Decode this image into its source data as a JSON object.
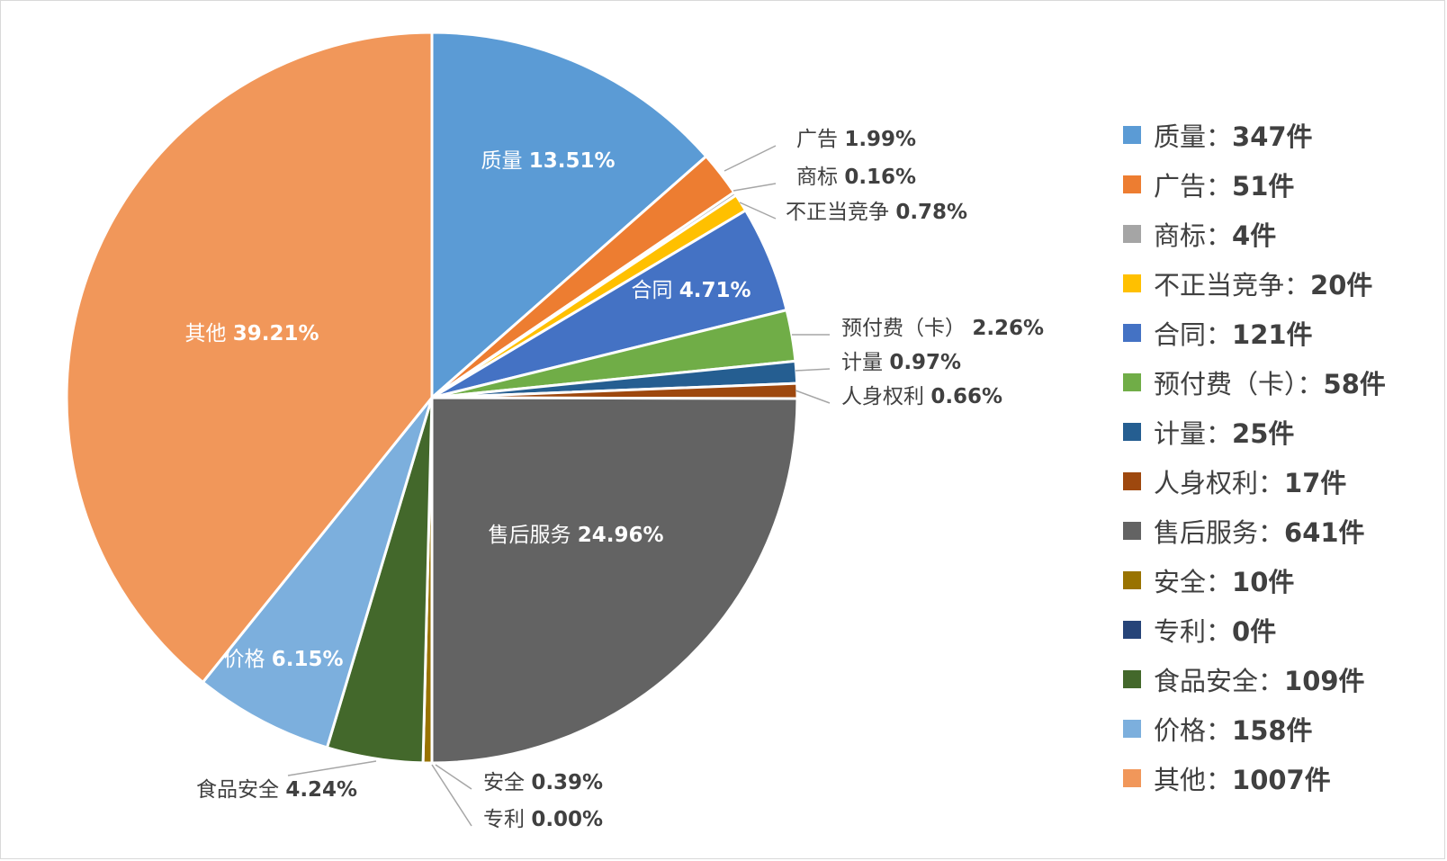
{
  "chart_data": {
    "type": "pie",
    "categories": [
      "质量",
      "广告",
      "商标",
      "不正当竞争",
      "合同",
      "预付费（卡）",
      "计量",
      "人身权利",
      "售后服务",
      "安全",
      "专利",
      "食品安全",
      "价格",
      "其他"
    ],
    "values": [
      347,
      51,
      4,
      20,
      121,
      58,
      25,
      17,
      641,
      10,
      0,
      109,
      158,
      1007
    ],
    "percent_labels": [
      "13.51%",
      "1.99%",
      "0.16%",
      "0.78%",
      "4.71%",
      "2.26%",
      "0.97%",
      "0.66%",
      "24.96%",
      "0.39%",
      "0.00%",
      "4.24%",
      "6.15%",
      "39.21%"
    ],
    "colors": [
      "#5b9bd5",
      "#ed7d31",
      "#a5a5a5",
      "#ffc000",
      "#4472c4",
      "#70ad47",
      "#255e91",
      "#9e480e",
      "#636363",
      "#997300",
      "#264478",
      "#43682b",
      "#7cafdd",
      "#f1975a"
    ],
    "legend": [
      {
        "name": "质量：",
        "value": "347件"
      },
      {
        "name": "广告：",
        "value": "51件"
      },
      {
        "name": "商标：",
        "value": "4件"
      },
      {
        "name": "不正当竞争：",
        "value": "20件"
      },
      {
        "name": "合同：",
        "value": "121件"
      },
      {
        "name": "预付费（卡）：",
        "value": "58件"
      },
      {
        "name": "计量：",
        "value": "25件"
      },
      {
        "name": "人身权利：",
        "value": "17件"
      },
      {
        "name": "售后服务：",
        "value": "641件"
      },
      {
        "name": "安全：",
        "value": "10件"
      },
      {
        "name": "专利：",
        "value": "0件"
      },
      {
        "name": "食品安全：",
        "value": "109件"
      },
      {
        "name": "价格：",
        "value": "158件"
      },
      {
        "name": "其他：",
        "value": "1007件"
      }
    ],
    "legend_position": "right",
    "start_angle": "12 o'clock",
    "direction": "clockwise"
  }
}
